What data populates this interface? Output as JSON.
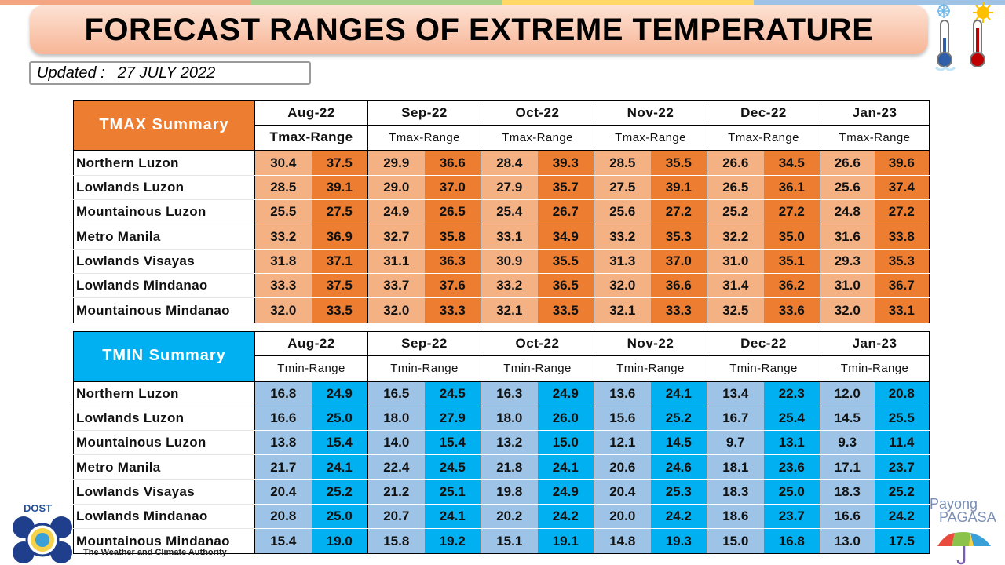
{
  "colors": {
    "tmax_header": "#ed7d31",
    "tmax_low_cell": "#f4b183",
    "tmax_high_cell": "#ed7d31",
    "tmin_header": "#00b0f0",
    "tmin_low_cell": "#9dc3e6",
    "tmin_high_cell": "#00b0f0"
  },
  "title": "FORECAST RANGES OF EXTREME TEMPERATURE",
  "updated": {
    "label": "Updated :",
    "date": "27 JULY 2022"
  },
  "months": [
    "Aug-22",
    "Sep-22",
    "Oct-22",
    "Nov-22",
    "Dec-22",
    "Jan-23"
  ],
  "regions": [
    "Northern Luzon",
    "Lowlands Luzon",
    "Mountainous Luzon",
    "Metro Manila",
    "Lowlands Visayas",
    "Lowlands Mindanao",
    "Mountainous Mindanao"
  ],
  "tmax": {
    "label": "TMAX Summary",
    "range_label": "Tmax-Range",
    "rows": [
      [
        [
          "30.4",
          "37.5"
        ],
        [
          "29.9",
          "36.6"
        ],
        [
          "28.4",
          "39.3"
        ],
        [
          "28.5",
          "35.5"
        ],
        [
          "26.6",
          "34.5"
        ],
        [
          "26.6",
          "39.6"
        ]
      ],
      [
        [
          "28.5",
          "39.1"
        ],
        [
          "29.0",
          "37.0"
        ],
        [
          "27.9",
          "35.7"
        ],
        [
          "27.5",
          "39.1"
        ],
        [
          "26.5",
          "36.1"
        ],
        [
          "25.6",
          "37.4"
        ]
      ],
      [
        [
          "25.5",
          "27.5"
        ],
        [
          "24.9",
          "26.5"
        ],
        [
          "25.4",
          "26.7"
        ],
        [
          "25.6",
          "27.2"
        ],
        [
          "25.2",
          "27.2"
        ],
        [
          "24.8",
          "27.2"
        ]
      ],
      [
        [
          "33.2",
          "36.9"
        ],
        [
          "32.7",
          "35.8"
        ],
        [
          "33.1",
          "34.9"
        ],
        [
          "33.2",
          "35.3"
        ],
        [
          "32.2",
          "35.0"
        ],
        [
          "31.6",
          "33.8"
        ]
      ],
      [
        [
          "31.8",
          "37.1"
        ],
        [
          "31.1",
          "36.3"
        ],
        [
          "30.9",
          "35.5"
        ],
        [
          "31.3",
          "37.0"
        ],
        [
          "31.0",
          "35.1"
        ],
        [
          "29.3",
          "35.3"
        ]
      ],
      [
        [
          "33.3",
          "37.5"
        ],
        [
          "33.7",
          "37.6"
        ],
        [
          "33.2",
          "36.5"
        ],
        [
          "32.0",
          "36.6"
        ],
        [
          "31.4",
          "36.2"
        ],
        [
          "31.0",
          "36.7"
        ]
      ],
      [
        [
          "32.0",
          "33.5"
        ],
        [
          "32.0",
          "33.3"
        ],
        [
          "32.1",
          "33.5"
        ],
        [
          "32.1",
          "33.3"
        ],
        [
          "32.5",
          "33.6"
        ],
        [
          "32.0",
          "33.1"
        ]
      ]
    ]
  },
  "tmin": {
    "label": "TMIN Summary",
    "range_label": "Tmin-Range",
    "rows": [
      [
        [
          "16.8",
          "24.9"
        ],
        [
          "16.5",
          "24.5"
        ],
        [
          "16.3",
          "24.9"
        ],
        [
          "13.6",
          "24.1"
        ],
        [
          "13.4",
          "22.3"
        ],
        [
          "12.0",
          "20.8"
        ]
      ],
      [
        [
          "16.6",
          "25.0"
        ],
        [
          "18.0",
          "27.9"
        ],
        [
          "18.0",
          "26.0"
        ],
        [
          "15.6",
          "25.2"
        ],
        [
          "16.7",
          "25.4"
        ],
        [
          "14.5",
          "25.5"
        ]
      ],
      [
        [
          "13.8",
          "15.4"
        ],
        [
          "14.0",
          "15.4"
        ],
        [
          "13.2",
          "15.0"
        ],
        [
          "12.1",
          "14.5"
        ],
        [
          "9.7",
          "13.1"
        ],
        [
          "9.3",
          "11.4"
        ]
      ],
      [
        [
          "21.7",
          "24.1"
        ],
        [
          "22.4",
          "24.5"
        ],
        [
          "21.8",
          "24.1"
        ],
        [
          "20.6",
          "24.6"
        ],
        [
          "18.1",
          "23.6"
        ],
        [
          "17.1",
          "23.7"
        ]
      ],
      [
        [
          "20.4",
          "25.2"
        ],
        [
          "21.2",
          "25.1"
        ],
        [
          "19.8",
          "24.9"
        ],
        [
          "20.4",
          "25.3"
        ],
        [
          "18.3",
          "25.0"
        ],
        [
          "18.3",
          "25.2"
        ]
      ],
      [
        [
          "20.8",
          "25.0"
        ],
        [
          "20.7",
          "24.1"
        ],
        [
          "20.2",
          "24.2"
        ],
        [
          "20.0",
          "24.2"
        ],
        [
          "18.6",
          "23.7"
        ],
        [
          "16.6",
          "24.2"
        ]
      ],
      [
        [
          "15.4",
          "19.0"
        ],
        [
          "15.8",
          "19.2"
        ],
        [
          "15.1",
          "19.1"
        ],
        [
          "14.8",
          "19.3"
        ],
        [
          "15.0",
          "16.8"
        ],
        [
          "13.0",
          "17.5"
        ]
      ]
    ]
  },
  "logos": {
    "dost_text": "DOST",
    "dost_tagline": "The Weather and Climate Authority",
    "payong_line1": "Payong",
    "payong_line2": "PAGASA"
  }
}
